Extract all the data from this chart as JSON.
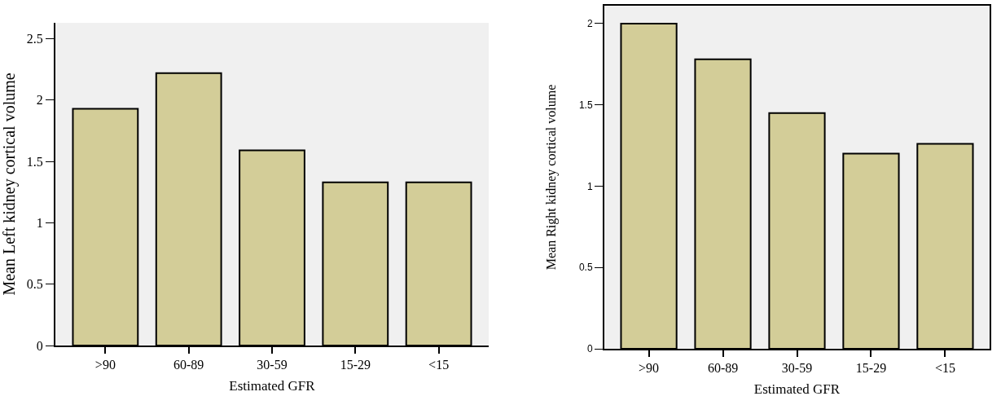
{
  "chart_data": [
    {
      "type": "bar",
      "xlabel": "Estimated GFR",
      "ylabel": "Mean Left kidney cortical volume",
      "categories": [
        ">90",
        "60-89",
        "30-59",
        "15-29",
        "<15"
      ],
      "values": [
        1.93,
        2.22,
        1.59,
        1.33,
        1.33
      ],
      "color": "#d3cd98",
      "ylim": [
        0,
        2.63
      ],
      "yticks": [
        0,
        0.5,
        1,
        1.5,
        2,
        2.5
      ],
      "grid": false,
      "legend": false
    },
    {
      "type": "bar",
      "xlabel": "Estimated GFR",
      "ylabel": "Mean Right kidney cortical volume",
      "categories": [
        ">90",
        "60-89",
        "30-59",
        "15-29",
        "<15"
      ],
      "values": [
        2.0,
        1.78,
        1.45,
        1.2,
        1.26
      ],
      "color": "#d3cd98",
      "ylim": [
        0,
        2.11
      ],
      "yticks": [
        0,
        0.5,
        1,
        1.5,
        2
      ],
      "grid": false,
      "legend": false
    }
  ]
}
